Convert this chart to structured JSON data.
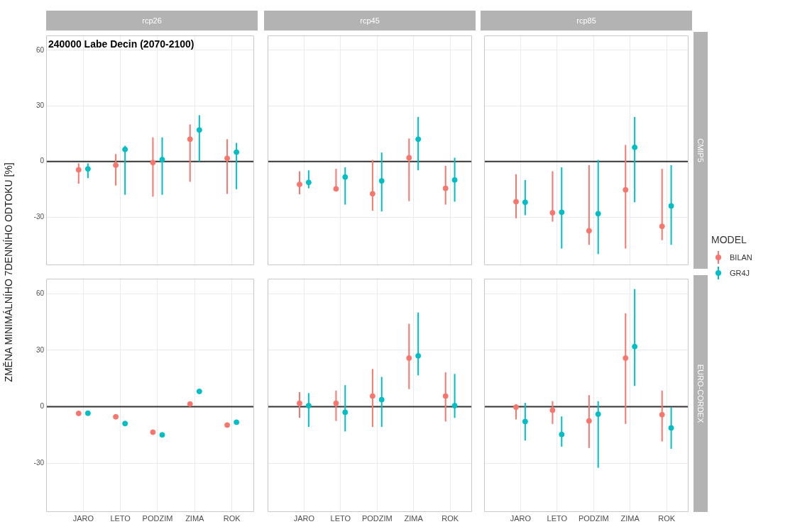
{
  "chart_data": [
    {
      "type": "scatter",
      "title": "rcp26",
      "ylabel": "ZMĚNA MINIMÁLNÍHO 7DENNÍHO ODTOKU [%]",
      "legend": "right",
      "legend_title": "MODEL",
      "annotations": [
        "240000 Labe Decin (2070-2100)"
      ],
      "categories": [
        "JARO",
        "LETO",
        "PODZIM",
        "ZIMA",
        "ROK"
      ],
      "ylim": [
        -56,
        68
      ],
      "yticks": [
        -30,
        0,
        30,
        60
      ],
      "grid": true,
      "tick_labels": "y",
      "marker": "circle",
      "ref_lines": [
        {
          "axis": "y",
          "value": 0,
          "color": "#333333"
        }
      ],
      "series": [
        {
          "name": "BILAN",
          "color": "#f8766d",
          "values": [
            -4.5,
            -2,
            -0.6,
            12,
            1.7
          ],
          "errors": [
            [
              -12,
              -1
            ],
            [
              -13,
              4
            ],
            [
              -19,
              13
            ],
            [
              -11,
              20
            ],
            [
              -17.5,
              12
            ]
          ]
        },
        {
          "name": "GR4J",
          "color": "#00bfc4",
          "values": [
            -4,
            6.5,
            1,
            17,
            5
          ],
          "errors": [
            [
              -9,
              -1
            ],
            [
              -18,
              8.5
            ],
            [
              -18,
              13
            ],
            [
              0,
              25
            ],
            [
              -15,
              10
            ]
          ]
        }
      ]
    },
    {
      "type": "scatter",
      "title": "rcp45",
      "categories": [
        "JARO",
        "LETO",
        "PODZIM",
        "ZIMA",
        "ROK"
      ],
      "ylim": [
        -56,
        68
      ],
      "yticks": [
        -30,
        0,
        30,
        60
      ],
      "grid": true,
      "tick_labels": false,
      "marker": "circle",
      "ref_lines": [
        {
          "axis": "y",
          "value": 0,
          "color": "#333333"
        }
      ],
      "series": [
        {
          "name": "BILAN",
          "color": "#f8766d",
          "values": [
            -12.4,
            -14.8,
            -17.4,
            2,
            -14.5
          ],
          "errors": [
            [
              -17.7,
              -5.3
            ],
            [
              -16,
              -4
            ],
            [
              -26.6,
              0.8
            ],
            [
              -21.4,
              12.4
            ],
            [
              -23.3,
              -2.4
            ]
          ]
        },
        {
          "name": "GR4J",
          "color": "#00bfc4",
          "values": [
            -11.3,
            -8.4,
            -10.5,
            12,
            -10
          ],
          "errors": [
            [
              -14.5,
              -4.8
            ],
            [
              -23.3,
              -3.2
            ],
            [
              -27,
              4.8
            ],
            [
              -4.8,
              24
            ],
            [
              -21.7,
              2
            ]
          ]
        }
      ]
    },
    {
      "type": "scatter",
      "title": "rcp85",
      "y2label": "CMIP5",
      "categories": [
        "JARO",
        "LETO",
        "PODZIM",
        "ZIMA",
        "ROK"
      ],
      "ylim": [
        -56,
        68
      ],
      "yticks": [
        -30,
        0,
        30,
        60
      ],
      "grid": true,
      "tick_labels": false,
      "marker": "circle",
      "ref_lines": [
        {
          "axis": "y",
          "value": 0,
          "color": "#333333"
        }
      ],
      "series": [
        {
          "name": "BILAN",
          "color": "#f8766d",
          "values": [
            -21.7,
            -27.7,
            -37.4,
            -15.3,
            -35
          ],
          "errors": [
            [
              -30.6,
              -6.9
            ],
            [
              -32.5,
              -5.3
            ],
            [
              -45,
              -2
            ],
            [
              -47,
              8.9
            ],
            [
              -42.5,
              -4
            ]
          ]
        },
        {
          "name": "GR4J",
          "color": "#00bfc4",
          "values": [
            -22,
            -27.4,
            -28.2,
            7.6,
            -24
          ],
          "errors": [
            [
              -29,
              -10
            ],
            [
              -47,
              -3.2
            ],
            [
              -50,
              0.8
            ],
            [
              -22,
              24
            ],
            [
              -45,
              -2
            ]
          ]
        }
      ]
    },
    {
      "type": "scatter",
      "categories": [
        "JARO",
        "LETO",
        "PODZIM",
        "ZIMA",
        "ROK"
      ],
      "ylim": [
        -56,
        68
      ],
      "yticks": [
        -30,
        0,
        30,
        60
      ],
      "grid": true,
      "marker": "circle",
      "ref_lines": [
        {
          "axis": "y",
          "value": 0,
          "color": "#333333"
        }
      ],
      "series": [
        {
          "name": "BILAN",
          "color": "#f8766d",
          "values": [
            -3.6,
            -5.4,
            -13.6,
            1.4,
            -9.8
          ]
        },
        {
          "name": "GR4J",
          "color": "#00bfc4",
          "values": [
            -3.5,
            -9,
            -15,
            8.1,
            -8.3
          ]
        }
      ]
    },
    {
      "type": "scatter",
      "categories": [
        "JARO",
        "LETO",
        "PODZIM",
        "ZIMA",
        "ROK"
      ],
      "ylim": [
        -56,
        68
      ],
      "yticks": [
        -30,
        0,
        30,
        60
      ],
      "grid": true,
      "tick_labels": "x",
      "marker": "circle",
      "ref_lines": [
        {
          "axis": "y",
          "value": 0,
          "color": "#333333"
        }
      ],
      "series": [
        {
          "name": "BILAN",
          "color": "#f8766d",
          "values": [
            1.8,
            1.8,
            5.6,
            25.8,
            5.6
          ],
          "errors": [
            [
              -6,
              7.7
            ],
            [
              -7.6,
              8.5
            ],
            [
              -10.8,
              20
            ],
            [
              9.3,
              44
            ],
            [
              -7.9,
              18.2
            ]
          ]
        },
        {
          "name": "GR4J",
          "color": "#00bfc4",
          "values": [
            0.5,
            -3,
            3.7,
            27,
            0.5
          ],
          "errors": [
            [
              -10.8,
              7.2
            ],
            [
              -13.2,
              11.4
            ],
            [
              -10.8,
              15.8
            ],
            [
              16.6,
              50
            ],
            [
              -6,
              17.4
            ]
          ]
        }
      ]
    },
    {
      "type": "scatter",
      "y2label": "EURO-CORDEX",
      "categories": [
        "JARO",
        "LETO",
        "PODZIM",
        "ZIMA",
        "ROK"
      ],
      "ylim": [
        -56,
        68
      ],
      "yticks": [
        -30,
        0,
        30,
        60
      ],
      "grid": true,
      "tick_labels": "x",
      "marker": "circle",
      "ref_lines": [
        {
          "axis": "y",
          "value": 0,
          "color": "#333333"
        }
      ],
      "series": [
        {
          "name": "BILAN",
          "color": "#f8766d",
          "values": [
            -0.3,
            -1.9,
            -7.6,
            25.8,
            -4.3
          ],
          "errors": [
            [
              -6.8,
              1.3
            ],
            [
              -9.2,
              2.9
            ],
            [
              -22,
              6.1
            ],
            [
              -9.2,
              49.6
            ],
            [
              -18.5,
              8.5
            ]
          ]
        },
        {
          "name": "GR4J",
          "color": "#00bfc4",
          "values": [
            -7.9,
            -14.8,
            -4,
            31.9,
            -11.3
          ],
          "errors": [
            [
              -18,
              2
            ],
            [
              -21.3,
              -5.2
            ],
            [
              -32.5,
              2.9
            ],
            [
              11,
              62.5
            ],
            [
              -22.4,
              -0.3
            ]
          ]
        }
      ]
    }
  ]
}
